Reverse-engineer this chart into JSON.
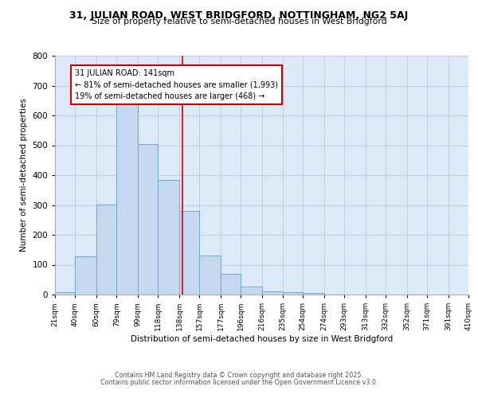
{
  "title1": "31, JULIAN ROAD, WEST BRIDGFORD, NOTTINGHAM, NG2 5AJ",
  "title2": "Size of property relative to semi-detached houses in West Bridgford",
  "xlabel": "Distribution of semi-detached houses by size in West Bridgford",
  "ylabel": "Number of semi-detached properties",
  "bin_edges": [
    21,
    40,
    60,
    79,
    99,
    118,
    138,
    157,
    177,
    196,
    216,
    235,
    254,
    274,
    293,
    313,
    332,
    352,
    371,
    391,
    410
  ],
  "bar_heights": [
    8,
    128,
    302,
    638,
    503,
    383,
    280,
    130,
    70,
    27,
    12,
    8,
    6,
    0,
    0,
    0,
    0,
    0,
    0,
    0
  ],
  "bar_color": "#c5d8f0",
  "bar_edgecolor": "#6aaad4",
  "vline_x": 141,
  "vline_color": "#cc0000",
  "annotation_title": "31 JULIAN ROAD: 141sqm",
  "annotation_line1": "← 81% of semi-detached houses are smaller (1,993)",
  "annotation_line2": "19% of semi-detached houses are larger (468) →",
  "annotation_box_edgecolor": "#cc0000",
  "annotation_bg": "#ffffff",
  "ylim": [
    0,
    800
  ],
  "yticks": [
    0,
    100,
    200,
    300,
    400,
    500,
    600,
    700,
    800
  ],
  "footer1": "Contains HM Land Registry data © Crown copyright and database right 2025.",
  "footer2": "Contains public sector information licensed under the Open Government Licence v3.0.",
  "plot_bg_color": "#dce9f7",
  "fig_bg_color": "#ffffff"
}
